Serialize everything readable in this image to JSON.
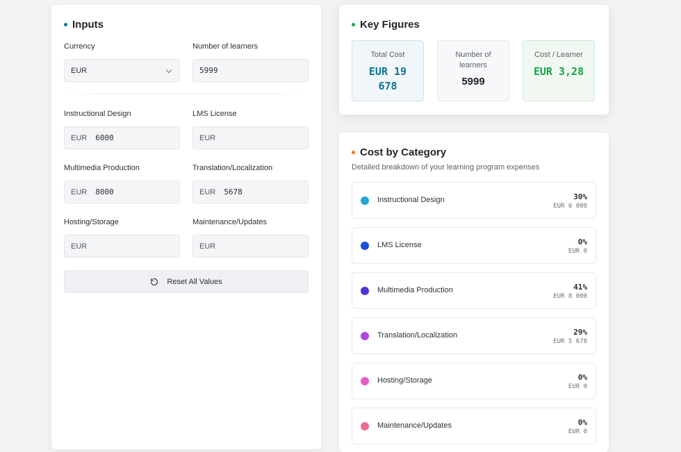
{
  "inputs": {
    "title": "Inputs",
    "accent": "#0e7490",
    "currency": {
      "label": "Currency",
      "value": "EUR"
    },
    "learners": {
      "label": "Number of learners",
      "value": "5999"
    },
    "fields": [
      {
        "label": "Instructional Design",
        "currency": "EUR",
        "value": "6000"
      },
      {
        "label": "LMS License",
        "currency": "EUR",
        "value": ""
      },
      {
        "label": "Multimedia Production",
        "currency": "EUR",
        "value": "8000"
      },
      {
        "label": "Translation/Localization",
        "currency": "EUR",
        "value": "5678"
      },
      {
        "label": "Hosting/Storage",
        "currency": "EUR",
        "value": ""
      },
      {
        "label": "Maintenance/Updates",
        "currency": "EUR",
        "value": ""
      }
    ],
    "reset_label": "Reset All Values"
  },
  "key_figures": {
    "title": "Key Figures",
    "accent": "#16a34a",
    "total": {
      "label": "Total Cost",
      "value": "EUR 19 678",
      "color": "#0e7490"
    },
    "learners": {
      "label": "Number of learners",
      "value": "5999",
      "color": "#1f2328"
    },
    "per_learner": {
      "label": "Cost / Learner",
      "value": "EUR 3,28",
      "color": "#16a34a"
    }
  },
  "categories": {
    "title": "Cost by Category",
    "accent": "#f97316",
    "subtitle": "Detailed breakdown of your learning program expenses",
    "items": [
      {
        "name": "Instructional Design",
        "pct": "30%",
        "amount": "EUR 6 000",
        "color": "#22a5d4"
      },
      {
        "name": "LMS License",
        "pct": "0%",
        "amount": "EUR 0",
        "color": "#1d4ed8"
      },
      {
        "name": "Multimedia Production",
        "pct": "41%",
        "amount": "EUR 8 000",
        "color": "#4f35d9"
      },
      {
        "name": "Translation/Localization",
        "pct": "29%",
        "amount": "EUR 5 678",
        "color": "#b048e0"
      },
      {
        "name": "Hosting/Storage",
        "pct": "0%",
        "amount": "EUR 0",
        "color": "#e85cc8"
      },
      {
        "name": "Maintenance/Updates",
        "pct": "0%",
        "amount": "EUR 0",
        "color": "#ee6b8f"
      }
    ]
  }
}
